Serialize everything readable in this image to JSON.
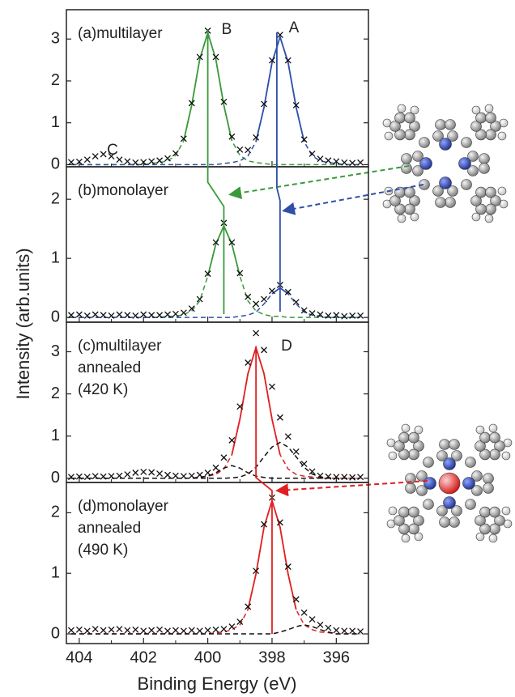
{
  "chart_data": {
    "type": "line",
    "x_label": "Binding Energy (eV)",
    "y_label": "Intensity (arb.units)",
    "xlim": [
      404.4,
      395.0
    ],
    "xticks": [
      404,
      402,
      400,
      398,
      396
    ],
    "xminorticks": [
      403,
      401,
      399,
      397
    ],
    "x": [
      404.25,
      404.0,
      403.75,
      403.5,
      403.25,
      403.0,
      402.75,
      402.5,
      402.25,
      402.0,
      401.75,
      401.5,
      401.25,
      401.0,
      400.75,
      400.5,
      400.25,
      400.0,
      399.75,
      399.5,
      399.25,
      399.0,
      398.75,
      398.5,
      398.25,
      398.0,
      397.75,
      397.5,
      397.25,
      397.0,
      396.75,
      396.5,
      396.25,
      396.0,
      395.75,
      395.5,
      395.25
    ],
    "peak_labels": [
      "A",
      "B",
      "C",
      "D"
    ],
    "panels": [
      {
        "label": [
          "(a)multilayer"
        ],
        "ylim": [
          -0.05,
          3.7
        ],
        "yticks": [
          0,
          1,
          2,
          3
        ],
        "series": [
          {
            "style": "dashed",
            "color": "#3a9a3a",
            "values": [
              0,
              0,
              0,
              0,
              0,
              0,
              0,
              0,
              0,
              0,
              0.03,
              0.05,
              0.09,
              0.22,
              0.57,
              1.42,
              2.52,
              3.15,
              2.52,
              1.42,
              0.57,
              0.22,
              0.09,
              0.05,
              0.03,
              0,
              0,
              0,
              0,
              0,
              0,
              0,
              0,
              0,
              0,
              0,
              0
            ]
          },
          {
            "style": "dashed",
            "color": "#2f4fa8",
            "values": [
              0,
              0,
              0,
              0,
              0,
              0,
              0,
              0,
              0,
              0,
              0,
              0,
              0,
              0,
              0,
              0,
              0,
              0,
              0,
              0.03,
              0.05,
              0.09,
              0.21,
              0.55,
              1.37,
              2.44,
              3.05,
              2.44,
              1.37,
              0.55,
              0.21,
              0.09,
              0.05,
              0.03,
              0,
              0,
              0
            ]
          },
          {
            "style": "markers",
            "color": "#111111",
            "values": [
              0.06,
              0.07,
              0.12,
              0.2,
              0.25,
              0.2,
              0.12,
              0.08,
              0.05,
              0.06,
              0.08,
              0.1,
              0.15,
              0.27,
              0.62,
              1.47,
              2.57,
              3.2,
              2.57,
              1.5,
              0.67,
              0.36,
              0.35,
              0.65,
              1.45,
              2.49,
              3.1,
              2.49,
              1.42,
              0.6,
              0.26,
              0.14,
              0.1,
              0.08,
              0.05,
              0.04,
              0.05
            ]
          }
        ]
      },
      {
        "label": [
          "(b)monolayer"
        ],
        "ylim": [
          -0.08,
          2.55
        ],
        "yticks": [
          0,
          1,
          2
        ],
        "series": [
          {
            "style": "dashed",
            "color": "#3a9a3a",
            "values": [
              0,
              0,
              0,
              0,
              0,
              0,
              0,
              0,
              0,
              0,
              0,
              0,
              0.02,
              0.02,
              0.05,
              0.11,
              0.28,
              0.7,
              1.24,
              1.55,
              1.24,
              0.7,
              0.28,
              0.11,
              0.05,
              0.02,
              0.02,
              0,
              0,
              0,
              0,
              0,
              0,
              0,
              0,
              0,
              0
            ]
          },
          {
            "style": "dashed",
            "color": "#2f4fa8",
            "values": [
              0,
              0,
              0,
              0,
              0,
              0,
              0,
              0,
              0,
              0,
              0,
              0,
              0,
              0,
              0,
              0,
              0,
              0,
              0,
              0,
              0,
              0.02,
              0.04,
              0.09,
              0.23,
              0.4,
              0.5,
              0.4,
              0.23,
              0.09,
              0.04,
              0.02,
              0,
              0,
              0,
              0,
              0
            ]
          },
          {
            "style": "markers",
            "color": "#111111",
            "values": [
              0.04,
              0.05,
              0.03,
              0.05,
              0.04,
              0.03,
              0.05,
              0.04,
              0.03,
              0.05,
              0.04,
              0.04,
              0.05,
              0.06,
              0.08,
              0.15,
              0.31,
              0.74,
              1.27,
              1.6,
              1.27,
              0.75,
              0.35,
              0.23,
              0.31,
              0.45,
              0.55,
              0.43,
              0.26,
              0.12,
              0.07,
              0.05,
              0.03,
              0.04,
              0.02,
              0.03,
              0.03
            ]
          }
        ]
      },
      {
        "label": [
          "(c)multilayer",
          "annealed",
          "(420 K)"
        ],
        "ylim": [
          -0.1,
          3.7
        ],
        "yticks": [
          0,
          1,
          2,
          3
        ],
        "series": [
          {
            "style": "dashed",
            "color": "#e02020",
            "values": [
              0,
              0,
              0,
              0,
              0,
              0,
              0,
              0,
              0,
              0,
              0,
              0,
              0,
              0,
              0,
              0,
              0.03,
              0.05,
              0.09,
              0.22,
              0.56,
              1.4,
              2.48,
              3.1,
              2.48,
              1.4,
              0.56,
              0.22,
              0.09,
              0.05,
              0.03,
              0,
              0,
              0,
              0,
              0,
              0
            ]
          },
          {
            "style": "dashed",
            "color": "#111111",
            "values": [
              0,
              0,
              0,
              0,
              0,
              0,
              0,
              0,
              0,
              0,
              0,
              0,
              0,
              0,
              0,
              0,
              0,
              0,
              0,
              0,
              0.01,
              0.03,
              0.1,
              0.26,
              0.51,
              0.74,
              0.85,
              0.74,
              0.51,
              0.26,
              0.1,
              0.03,
              0.01,
              0,
              0,
              0,
              0
            ]
          },
          {
            "style": "dashed",
            "color": "#111111",
            "values": [
              0,
              0,
              0,
              0,
              0,
              0,
              0,
              0,
              0,
              0,
              0,
              0,
              0,
              0,
              0,
              0,
              0.02,
              0.05,
              0.13,
              0.24,
              0.3,
              0.24,
              0.13,
              0.05,
              0.02,
              0,
              0,
              0,
              0,
              0,
              0,
              0,
              0,
              0,
              0,
              0,
              0
            ]
          },
          {
            "style": "markers",
            "color": "#111111",
            "values": [
              0.03,
              0.04,
              0.03,
              0.05,
              0.04,
              0.05,
              0.06,
              0.09,
              0.13,
              0.15,
              0.14,
              0.11,
              0.08,
              0.06,
              0.05,
              0.06,
              0.08,
              0.13,
              0.25,
              0.49,
              0.9,
              1.7,
              2.74,
              3.44,
              3.04,
              2.17,
              1.44,
              0.99,
              0.63,
              0.34,
              0.16,
              0.06,
              0.04,
              0.03,
              0.03,
              0.02,
              0.03
            ]
          }
        ]
      },
      {
        "label": [
          "(d)monolayer",
          "annealed",
          "(490 K)"
        ],
        "ylim": [
          -0.16,
          2.5
        ],
        "yticks": [
          0,
          1,
          2
        ],
        "series": [
          {
            "style": "dashed",
            "color": "#e02020",
            "values": [
              0,
              0,
              0,
              0,
              0,
              0,
              0,
              0,
              0,
              0,
              0,
              0,
              0,
              0,
              0,
              0,
              0,
              0,
              0.02,
              0.03,
              0.07,
              0.15,
              0.4,
              0.99,
              1.76,
              2.2,
              1.76,
              0.99,
              0.4,
              0.15,
              0.07,
              0.03,
              0.02,
              0,
              0,
              0,
              0
            ]
          },
          {
            "style": "dashed",
            "color": "#111111",
            "values": [
              0,
              0,
              0,
              0,
              0,
              0,
              0,
              0,
              0,
              0,
              0,
              0,
              0,
              0,
              0,
              0,
              0,
              0,
              0,
              0,
              0,
              0,
              0,
              0,
              0,
              0,
              0.03,
              0.07,
              0.12,
              0.15,
              0.12,
              0.07,
              0.03,
              0,
              0,
              0,
              0
            ]
          },
          {
            "style": "markers",
            "color": "#111111",
            "values": [
              0.06,
              0.07,
              0.05,
              0.08,
              0.06,
              0.07,
              0.08,
              0.06,
              0.07,
              0.05,
              0.06,
              0.07,
              0.05,
              0.06,
              0.05,
              0.06,
              0.05,
              0.06,
              0.07,
              0.08,
              0.12,
              0.2,
              0.45,
              1.04,
              1.81,
              2.25,
              1.84,
              1.11,
              0.57,
              0.35,
              0.24,
              0.15,
              0.1,
              0.06,
              0.05,
              0.05,
              0.04
            ]
          }
        ]
      }
    ],
    "links": [
      {
        "color": "#3a9a3a",
        "x": [
          400.0,
          399.5
        ]
      },
      {
        "color": "#2f4fa8",
        "x": [
          397.85,
          397.75
        ]
      },
      {
        "color": "#e02020",
        "x": [
          398.5,
          398.0
        ]
      }
    ]
  }
}
